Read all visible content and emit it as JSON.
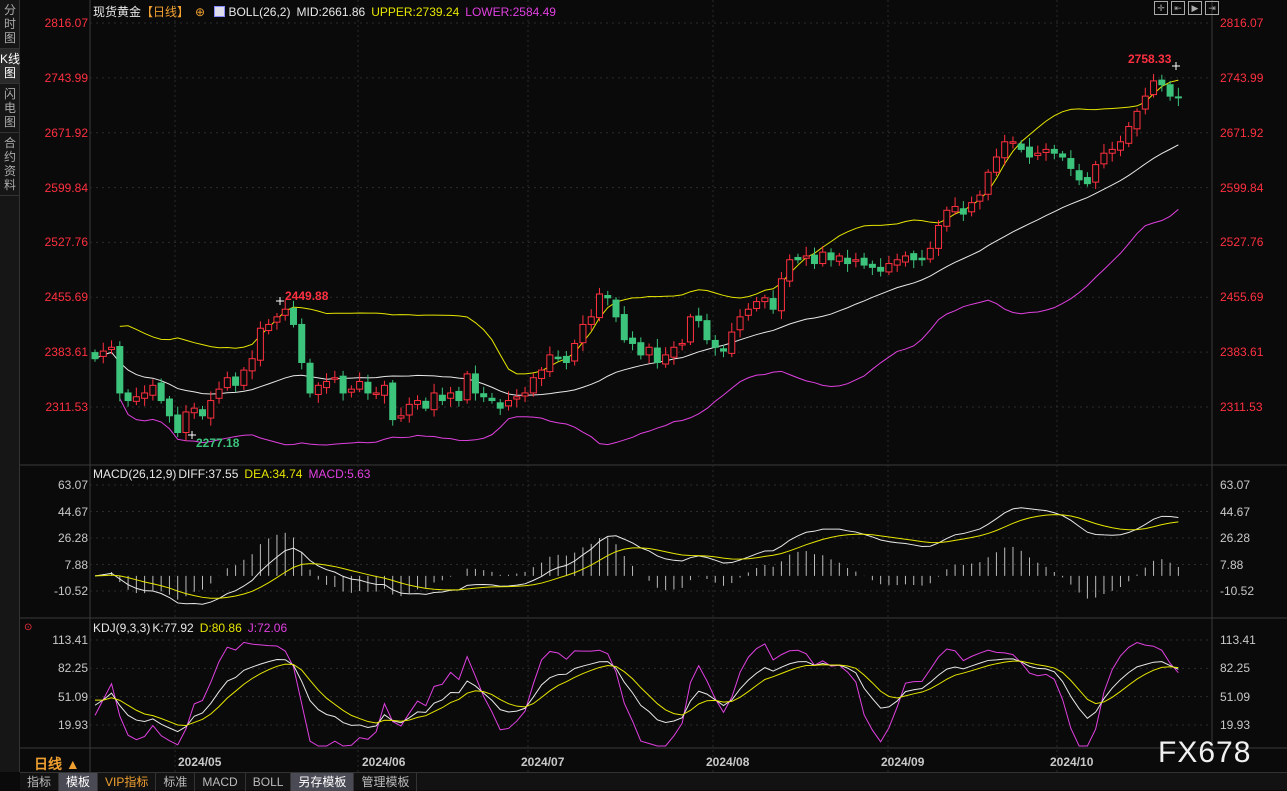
{
  "left_tabs": [
    {
      "label": "分时图"
    },
    {
      "label": "K线图"
    },
    {
      "label": "闪电图"
    },
    {
      "label": "合约资料"
    }
  ],
  "header": {
    "symbol": "现货黄金",
    "period": "【日线】",
    "indicator": "BOLL(26,2)",
    "mid": "MID:2661.86",
    "upper": "UPPER:2739.24",
    "lower": "LOWER:2584.49"
  },
  "macd_legend": {
    "name": "MACD(26,12,9)",
    "diff": "DIFF:37.55",
    "dea": "DEA:34.74",
    "macd": "MACD:5.63"
  },
  "kdj_legend": {
    "name": "KDJ(9,3,3)",
    "k": "K:77.92",
    "d": "D:80.86",
    "j": "J:72.06"
  },
  "toolbar": [
    "crosshair",
    "zoom-left",
    "zoom-play",
    "zoom-right"
  ],
  "period_selector": {
    "label": "日线 ▲"
  },
  "bottom_tabs": [
    {
      "label": "指标"
    },
    {
      "label": "模板",
      "active": true
    },
    {
      "label": "VIP指标",
      "vip": true
    },
    {
      "label": "标准"
    },
    {
      "label": "MACD"
    },
    {
      "label": "BOLL"
    },
    {
      "label": "另存模板",
      "active": true
    },
    {
      "label": "管理模板"
    }
  ],
  "watermark": "FX678",
  "colors": {
    "up": "#ff3040",
    "down": "#3cc47c",
    "mid": "#e8e8e8",
    "upper": "#e6e600",
    "lower": "#e040e0"
  },
  "chart_data": [
    {
      "type": "candlestick",
      "title": "现货黄金 日线",
      "indicator": "BOLL(26,2)",
      "y_ticks": [
        "2816.07",
        "2743.99",
        "2671.92",
        "2599.84",
        "2527.76",
        "2455.69",
        "2383.61",
        "2311.53"
      ],
      "ylim": [
        2311.53,
        2816.07
      ],
      "x_ticks": [
        "2024/05",
        "2024/06",
        "2024/07",
        "2024/08",
        "2024/09",
        "2024/10"
      ],
      "annotations": {
        "high_mid": "2449.88",
        "low": "2277.18",
        "high": "2758.33"
      },
      "closes": [
        2375,
        2385,
        2390,
        2330,
        2320,
        2325,
        2330,
        2340,
        2320,
        2300,
        2278,
        2305,
        2310,
        2300,
        2320,
        2335,
        2350,
        2340,
        2360,
        2375,
        2415,
        2420,
        2430,
        2440,
        2420,
        2370,
        2330,
        2340,
        2345,
        2350,
        2330,
        2335,
        2345,
        2330,
        2330,
        2340,
        2295,
        2300,
        2315,
        2320,
        2310,
        2330,
        2320,
        2330,
        2320,
        2355,
        2330,
        2325,
        2320,
        2310,
        2320,
        2325,
        2330,
        2350,
        2360,
        2380,
        2375,
        2370,
        2395,
        2420,
        2430,
        2460,
        2455,
        2430,
        2400,
        2395,
        2380,
        2390,
        2370,
        2380,
        2390,
        2395,
        2430,
        2425,
        2400,
        2390,
        2385,
        2410,
        2430,
        2440,
        2450,
        2455,
        2440,
        2480,
        2505,
        2505,
        2510,
        2500,
        2515,
        2505,
        2510,
        2500,
        2505,
        2498,
        2495,
        2490,
        2500,
        2505,
        2510,
        2505,
        2505,
        2520,
        2550,
        2570,
        2575,
        2565,
        2580,
        2590,
        2620,
        2640,
        2660,
        2660,
        2650,
        2640,
        2645,
        2650,
        2645,
        2640,
        2625,
        2610,
        2605,
        2630,
        2645,
        2650,
        2660,
        2680,
        2700,
        2720,
        2740,
        2735,
        2720,
        2718
      ]
    },
    {
      "type": "bar+line",
      "title": "MACD(26,12,9)",
      "y_ticks": [
        "63.07",
        "44.67",
        "26.28",
        "7.88",
        "-10.52"
      ],
      "ylim": [
        -10.52,
        63.07
      ],
      "series": [
        "DIFF",
        "DEA",
        "MACD"
      ]
    },
    {
      "type": "line",
      "title": "KDJ(9,3,3)",
      "y_ticks": [
        "113.41",
        "82.25",
        "51.09",
        "19.93"
      ],
      "ylim": [
        19.93,
        113.41
      ],
      "series": [
        "K",
        "D",
        "J"
      ]
    }
  ]
}
